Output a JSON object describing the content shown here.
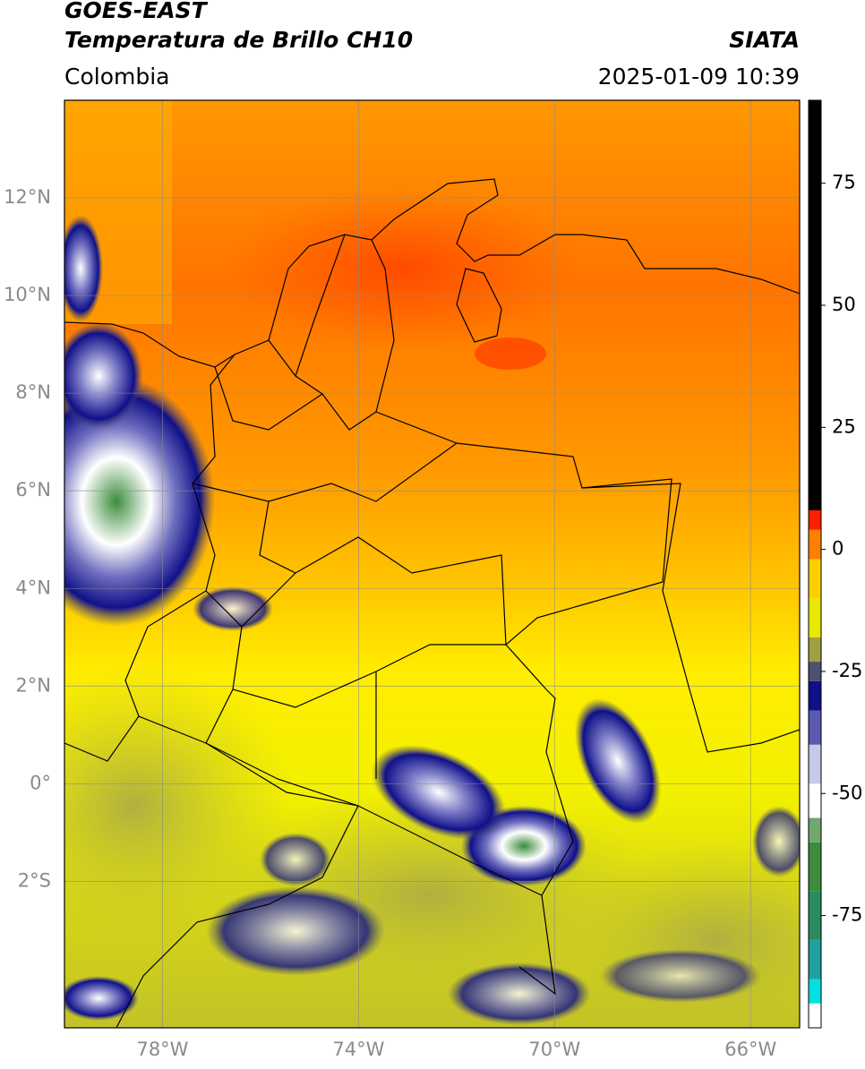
{
  "header": {
    "title": "GOES-EAST",
    "subtitle": "Temperatura de Brillo CH10",
    "source": "SIATA",
    "region": "Colombia",
    "datetime": "2025-01-09 10:39"
  },
  "map": {
    "xlim": [
      -80,
      -65
    ],
    "ylim": [
      -5,
      14
    ],
    "grid": true,
    "xticks": [
      {
        "value": -78,
        "label": "78°W"
      },
      {
        "value": -74,
        "label": "74°W"
      },
      {
        "value": -70,
        "label": "70°W"
      },
      {
        "value": -66,
        "label": "66°W"
      }
    ],
    "yticks": [
      {
        "value": -2,
        "label": "2°S"
      },
      {
        "value": 0,
        "label": "0°"
      },
      {
        "value": 2,
        "label": "2°N"
      },
      {
        "value": 4,
        "label": "4°N"
      },
      {
        "value": 6,
        "label": "6°N"
      },
      {
        "value": 8,
        "label": "8°N"
      },
      {
        "value": 10,
        "label": "10°N"
      },
      {
        "value": 12,
        "label": "12°N"
      }
    ]
  },
  "colorbar": {
    "lim": [
      -98,
      92
    ],
    "ticks": [
      -75,
      -50,
      -25,
      0,
      25,
      50,
      75
    ],
    "bands": [
      {
        "low": -98,
        "high": -93,
        "color": "#ffffff"
      },
      {
        "low": -93,
        "high": -88,
        "color": "#00e0e0"
      },
      {
        "low": -88,
        "high": -80,
        "color": "#20a0a0"
      },
      {
        "low": -80,
        "high": -70,
        "color": "#2a8a60"
      },
      {
        "low": -70,
        "high": -60,
        "color": "#3c8c3c"
      },
      {
        "low": -60,
        "high": -55,
        "color": "#70a870"
      },
      {
        "low": -55,
        "high": -48,
        "color": "#ffffff"
      },
      {
        "low": -48,
        "high": -40,
        "color": "#c8c8e8"
      },
      {
        "low": -40,
        "high": -33,
        "color": "#5a5ab0"
      },
      {
        "low": -33,
        "high": -27,
        "color": "#10108a"
      },
      {
        "low": -27,
        "high": -23,
        "color": "#505070"
      },
      {
        "low": -23,
        "high": -18,
        "color": "#a0a040"
      },
      {
        "low": -18,
        "high": -10,
        "color": "#e8e800"
      },
      {
        "low": -10,
        "high": -2,
        "color": "#ffd000"
      },
      {
        "low": -2,
        "high": 4,
        "color": "#ff8000"
      },
      {
        "low": 4,
        "high": 8,
        "color": "#ff2000"
      },
      {
        "low": 8,
        "high": 92,
        "color": "#000000"
      }
    ]
  }
}
